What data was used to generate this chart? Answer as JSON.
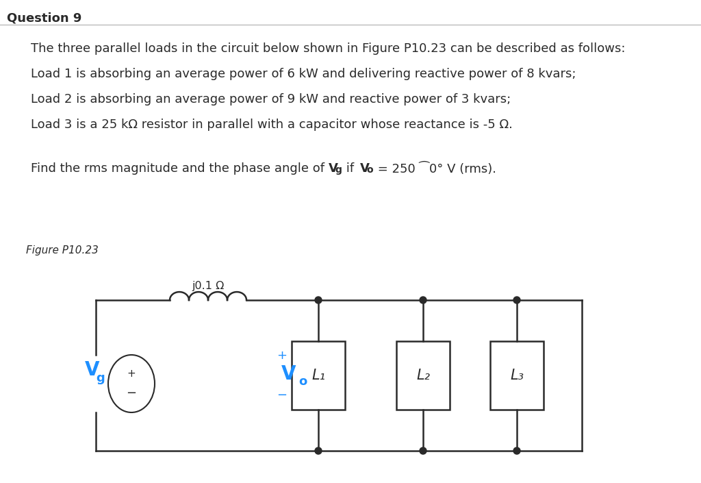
{
  "title": "Question 9",
  "background_color": "#ffffff",
  "text_color": "#2a2a2a",
  "line1": "The three parallel loads in the circuit below shown in Figure P10.23 can be described as follows:",
  "line2": "Load 1 is absorbing an average power of 6 kW and delivering reactive power of 8 kvars;",
  "line3": "Load 2 is absorbing an average power of 9 kW and reactive power of 3 kvars;",
  "line4": "Load 3 is a 25 kΩ resistor in parallel with a capacitor whose reactance is -5 Ω.",
  "line5_prefix": "Find the rms magnitude and the phase angle of ",
  "line5_suffix": " = 250 ⁀0° V (rms).",
  "figure_label": "Figure P10.23",
  "inductor_label": "j0.1 Ω",
  "cyan_color": "#1e8fff",
  "circuit_color": "#2a2a2a",
  "load_labels": [
    "L₁",
    "L₂",
    "L₃"
  ],
  "title_fontsize": 13,
  "body_fontsize": 13,
  "fig_label_fontsize": 11
}
